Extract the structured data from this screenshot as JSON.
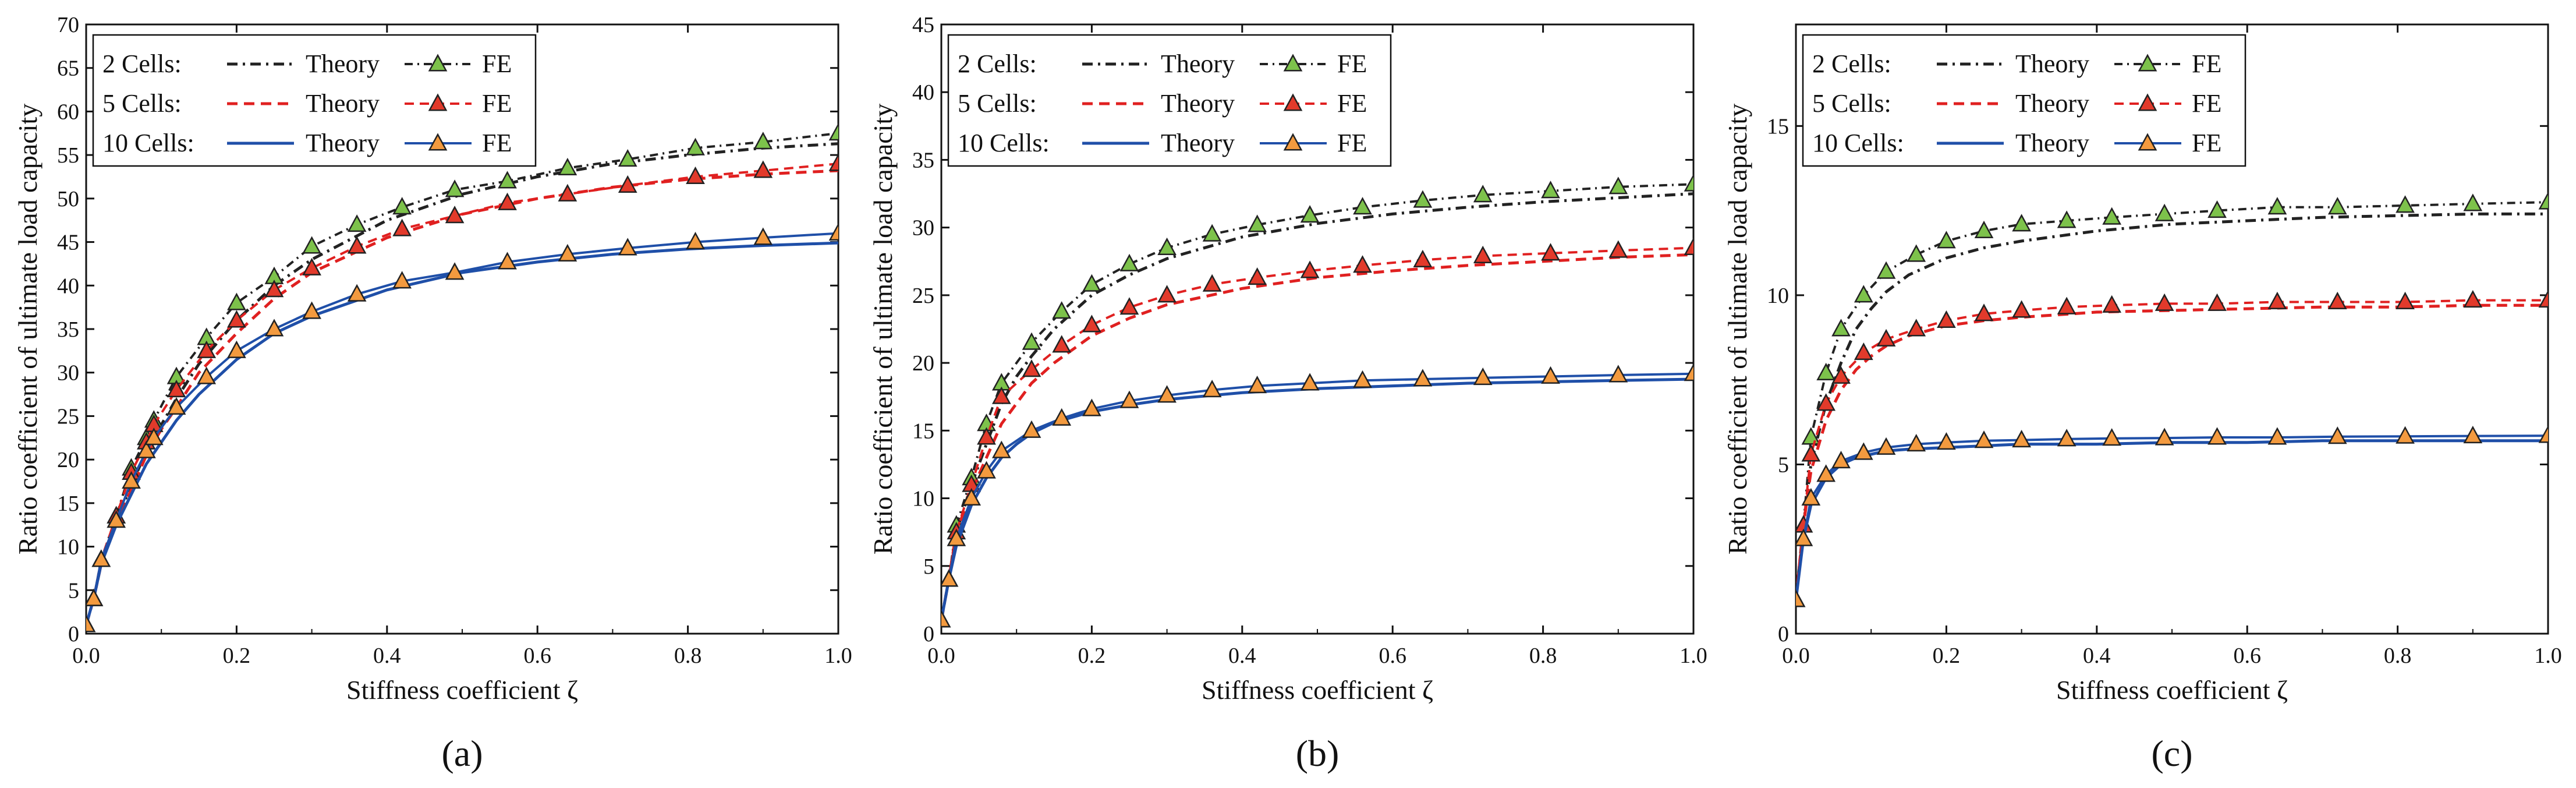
{
  "figure": {
    "shared_x_label": "Stiffness coefficient ζ",
    "shared_y_label": "Ratio coefficient of ultimate load capacity"
  },
  "legend": {
    "rows": [
      {
        "group": "2 Cells:",
        "theory": "Theory",
        "fe": "FE",
        "color": "#222222",
        "marker_fill": "#7dc24b",
        "dash": "14,8,3,8"
      },
      {
        "group": "5 Cells:",
        "theory": "Theory",
        "fe": "FE",
        "color": "#e02020",
        "marker_fill": "#e23a2b",
        "dash": "16,10"
      },
      {
        "group": "10 Cells:",
        "theory": "Theory",
        "fe": "FE",
        "color": "#1f4fa8",
        "marker_fill": "#f39a3f",
        "dash": ""
      }
    ]
  },
  "chart_data": [
    {
      "type": "line",
      "panel_label": "(a)",
      "xlabel": "Stiffness coefficient ζ",
      "ylabel": "Ratio coefficient of ultimate load capacity",
      "xlim": [
        0.0,
        1.0
      ],
      "ylim": [
        0,
        70
      ],
      "xticks": [
        "0.0",
        "0.2",
        "0.4",
        "0.6",
        "0.8",
        "1.0"
      ],
      "yticks": [
        "0",
        "5",
        "10",
        "15",
        "20",
        "25",
        "30",
        "35",
        "40",
        "45",
        "50",
        "55",
        "60",
        "65",
        "70"
      ],
      "series": [
        {
          "name": "2 Cells: Theory",
          "style": "dashdot",
          "x": [
            0,
            0.01,
            0.02,
            0.04,
            0.06,
            0.08,
            0.1,
            0.12,
            0.15,
            0.2,
            0.25,
            0.3,
            0.4,
            0.5,
            0.6,
            0.7,
            0.8,
            0.9,
            1.0
          ],
          "y": [
            1,
            4,
            8,
            13,
            17,
            21,
            24,
            27,
            31,
            36,
            40,
            43,
            47.5,
            50.5,
            52.5,
            54,
            55,
            55.8,
            56.3
          ]
        },
        {
          "name": "2 Cells: FE",
          "style": "markers",
          "x": [
            0,
            0.01,
            0.02,
            0.04,
            0.06,
            0.08,
            0.09,
            0.12,
            0.16,
            0.2,
            0.25,
            0.3,
            0.36,
            0.42,
            0.49,
            0.56,
            0.64,
            0.72,
            0.81,
            0.9,
            1.0
          ],
          "y": [
            1,
            4,
            8.5,
            13.5,
            19,
            22.5,
            24.5,
            29.5,
            34,
            38,
            41,
            44.5,
            47,
            49,
            51,
            52,
            53.5,
            54.5,
            55.8,
            56.5,
            57.5
          ]
        },
        {
          "name": "5 Cells: Theory",
          "style": "dashed",
          "x": [
            0,
            0.01,
            0.02,
            0.04,
            0.06,
            0.08,
            0.1,
            0.12,
            0.15,
            0.2,
            0.25,
            0.3,
            0.4,
            0.5,
            0.6,
            0.7,
            0.8,
            0.9,
            1.0
          ],
          "y": [
            1,
            4,
            8,
            13,
            16.5,
            20.5,
            23.5,
            26,
            30,
            34.5,
            38.5,
            41.5,
            45.5,
            48.2,
            50,
            51.3,
            52.2,
            52.8,
            53.2
          ]
        },
        {
          "name": "5 Cells: FE",
          "style": "markers",
          "x": [
            0,
            0.01,
            0.02,
            0.04,
            0.06,
            0.08,
            0.09,
            0.12,
            0.16,
            0.2,
            0.25,
            0.3,
            0.36,
            0.42,
            0.49,
            0.56,
            0.64,
            0.72,
            0.81,
            0.9,
            1.0
          ],
          "y": [
            1,
            4,
            8.5,
            13.5,
            18.5,
            22,
            24,
            28,
            32.5,
            36,
            39.5,
            42,
            44.5,
            46.5,
            48,
            49.5,
            50.5,
            51.5,
            52.5,
            53.2,
            54
          ]
        },
        {
          "name": "10 Cells: Theory",
          "style": "solid",
          "x": [
            0,
            0.01,
            0.02,
            0.04,
            0.06,
            0.08,
            0.1,
            0.12,
            0.15,
            0.2,
            0.25,
            0.3,
            0.4,
            0.5,
            0.6,
            0.7,
            0.8,
            0.9,
            1.0
          ],
          "y": [
            1,
            4,
            8,
            12.5,
            16,
            19.5,
            22,
            24.5,
            27.5,
            31.5,
            34.5,
            36.5,
            39.5,
            41.5,
            42.7,
            43.6,
            44.2,
            44.6,
            44.9
          ]
        },
        {
          "name": "10 Cells: FE",
          "style": "markers",
          "x": [
            0,
            0.01,
            0.02,
            0.04,
            0.06,
            0.08,
            0.09,
            0.12,
            0.16,
            0.2,
            0.25,
            0.3,
            0.36,
            0.42,
            0.49,
            0.56,
            0.64,
            0.72,
            0.81,
            0.9,
            1.0
          ],
          "y": [
            1,
            4,
            8.5,
            13,
            17.5,
            21,
            22.5,
            26,
            29.5,
            32.5,
            35,
            37,
            39,
            40.5,
            41.5,
            42.7,
            43.6,
            44.3,
            45,
            45.5,
            46
          ]
        }
      ]
    },
    {
      "type": "line",
      "panel_label": "(b)",
      "xlabel": "Stiffness coefficient ζ",
      "ylabel": "Ratio coefficient of ultimate load capacity",
      "xlim": [
        0.0,
        1.0
      ],
      "ylim": [
        0,
        45
      ],
      "xticks": [
        "0.0",
        "0.2",
        "0.4",
        "0.6",
        "0.8",
        "1.0"
      ],
      "yticks": [
        "0",
        "5",
        "10",
        "15",
        "20",
        "25",
        "30",
        "35",
        "40",
        "45"
      ],
      "series": [
        {
          "name": "2 Cells: Theory",
          "style": "dashdot",
          "x": [
            0,
            0.01,
            0.02,
            0.04,
            0.06,
            0.08,
            0.1,
            0.12,
            0.15,
            0.2,
            0.25,
            0.3,
            0.4,
            0.5,
            0.6,
            0.7,
            0.8,
            0.9,
            1.0
          ],
          "y": [
            1,
            4,
            7.5,
            11,
            14,
            17,
            19,
            20.5,
            22.5,
            25,
            26.5,
            27.7,
            29.3,
            30.3,
            31,
            31.5,
            31.9,
            32.2,
            32.5
          ]
        },
        {
          "name": "2 Cells: FE",
          "style": "markers",
          "x": [
            0,
            0.01,
            0.02,
            0.04,
            0.06,
            0.08,
            0.12,
            0.16,
            0.2,
            0.25,
            0.3,
            0.36,
            0.42,
            0.49,
            0.56,
            0.64,
            0.72,
            0.81,
            0.9,
            1.0
          ],
          "y": [
            1,
            4,
            8,
            11.5,
            15.5,
            18.5,
            21.5,
            23.8,
            25.8,
            27.3,
            28.5,
            29.5,
            30.2,
            30.9,
            31.5,
            32,
            32.4,
            32.7,
            33,
            33.2
          ]
        },
        {
          "name": "5 Cells: Theory",
          "style": "dashed",
          "x": [
            0,
            0.01,
            0.02,
            0.04,
            0.06,
            0.08,
            0.1,
            0.12,
            0.15,
            0.2,
            0.25,
            0.3,
            0.4,
            0.5,
            0.6,
            0.7,
            0.8,
            0.9,
            1.0
          ],
          "y": [
            1,
            4,
            7.5,
            10.5,
            13,
            15.5,
            17,
            18.5,
            20,
            22,
            23.3,
            24.3,
            25.5,
            26.3,
            26.8,
            27.2,
            27.5,
            27.8,
            28
          ]
        },
        {
          "name": "5 Cells: FE",
          "style": "markers",
          "x": [
            0,
            0.01,
            0.02,
            0.04,
            0.06,
            0.08,
            0.12,
            0.16,
            0.2,
            0.25,
            0.3,
            0.36,
            0.42,
            0.49,
            0.56,
            0.64,
            0.72,
            0.81,
            0.9,
            1.0
          ],
          "y": [
            1,
            4,
            7.5,
            11,
            14.5,
            17.5,
            19.5,
            21.3,
            22.8,
            24.1,
            25,
            25.8,
            26.3,
            26.8,
            27.2,
            27.6,
            27.9,
            28.1,
            28.3,
            28.5
          ]
        },
        {
          "name": "10 Cells: Theory",
          "style": "solid",
          "x": [
            0,
            0.01,
            0.02,
            0.04,
            0.06,
            0.08,
            0.1,
            0.12,
            0.15,
            0.2,
            0.25,
            0.3,
            0.4,
            0.5,
            0.6,
            0.7,
            0.8,
            0.9,
            1.0
          ],
          "y": [
            1,
            4,
            6.5,
            9.5,
            11.5,
            13,
            14,
            14.8,
            15.6,
            16.4,
            16.9,
            17.3,
            17.8,
            18.1,
            18.3,
            18.5,
            18.6,
            18.7,
            18.8
          ]
        },
        {
          "name": "10 Cells: FE",
          "style": "markers",
          "x": [
            0,
            0.01,
            0.02,
            0.04,
            0.06,
            0.08,
            0.12,
            0.16,
            0.2,
            0.25,
            0.3,
            0.36,
            0.42,
            0.49,
            0.56,
            0.64,
            0.72,
            0.81,
            0.9,
            1.0
          ],
          "y": [
            1,
            4,
            7,
            10,
            12,
            13.5,
            15,
            15.9,
            16.6,
            17.2,
            17.6,
            18,
            18.3,
            18.5,
            18.7,
            18.8,
            18.9,
            19,
            19.1,
            19.2
          ]
        }
      ]
    },
    {
      "type": "line",
      "panel_label": "(c)",
      "xlabel": "Stiffness coefficient ζ",
      "ylabel": "Ratio coefficient of ultimate load capacity",
      "xlim": [
        0.0,
        1.0
      ],
      "ylim": [
        0,
        18
      ],
      "xticks": [
        "0.0",
        "0.2",
        "0.4",
        "0.6",
        "0.8",
        "1.0"
      ],
      "yticks": [
        "0",
        "5",
        "10",
        "15"
      ],
      "series": [
        {
          "name": "2 Cells: Theory",
          "style": "dashdot",
          "x": [
            0,
            0.01,
            0.02,
            0.04,
            0.06,
            0.08,
            0.1,
            0.12,
            0.15,
            0.2,
            0.25,
            0.3,
            0.4,
            0.5,
            0.6,
            0.7,
            0.8,
            0.9,
            1.0
          ],
          "y": [
            1,
            3.2,
            5,
            6.8,
            8,
            9,
            9.6,
            10.1,
            10.6,
            11.1,
            11.4,
            11.6,
            11.9,
            12.1,
            12.2,
            12.3,
            12.35,
            12.4,
            12.4
          ]
        },
        {
          "name": "2 Cells: FE",
          "style": "markers",
          "x": [
            0,
            0.01,
            0.02,
            0.04,
            0.06,
            0.09,
            0.12,
            0.16,
            0.2,
            0.25,
            0.3,
            0.36,
            0.42,
            0.49,
            0.56,
            0.64,
            0.72,
            0.81,
            0.9,
            1.0
          ],
          "y": [
            1,
            3.2,
            5.8,
            7.7,
            9,
            10,
            10.7,
            11.2,
            11.6,
            11.9,
            12.1,
            12.2,
            12.3,
            12.4,
            12.5,
            12.6,
            12.6,
            12.65,
            12.7,
            12.75
          ]
        },
        {
          "name": "5 Cells: Theory",
          "style": "dashed",
          "x": [
            0,
            0.01,
            0.02,
            0.04,
            0.06,
            0.08,
            0.1,
            0.12,
            0.15,
            0.2,
            0.25,
            0.3,
            0.4,
            0.5,
            0.6,
            0.7,
            0.8,
            0.9,
            1.0
          ],
          "y": [
            1,
            3.2,
            4.8,
            6.3,
            7.2,
            7.8,
            8.2,
            8.5,
            8.8,
            9.1,
            9.25,
            9.35,
            9.5,
            9.55,
            9.6,
            9.65,
            9.65,
            9.7,
            9.7
          ]
        },
        {
          "name": "5 Cells: FE",
          "style": "markers",
          "x": [
            0,
            0.01,
            0.02,
            0.04,
            0.06,
            0.09,
            0.12,
            0.16,
            0.2,
            0.25,
            0.3,
            0.36,
            0.42,
            0.49,
            0.56,
            0.64,
            0.72,
            0.81,
            0.9,
            1.0
          ],
          "y": [
            1,
            3.2,
            5.3,
            6.8,
            7.6,
            8.3,
            8.7,
            9,
            9.25,
            9.45,
            9.55,
            9.65,
            9.7,
            9.75,
            9.75,
            9.8,
            9.8,
            9.8,
            9.85,
            9.85
          ]
        },
        {
          "name": "10 Cells: Theory",
          "style": "solid",
          "x": [
            0,
            0.01,
            0.02,
            0.04,
            0.06,
            0.08,
            0.1,
            0.12,
            0.15,
            0.2,
            0.25,
            0.3,
            0.4,
            0.5,
            0.6,
            0.7,
            0.8,
            0.9,
            1.0
          ],
          "y": [
            1,
            2.8,
            3.8,
            4.6,
            5,
            5.2,
            5.3,
            5.4,
            5.45,
            5.5,
            5.55,
            5.6,
            5.6,
            5.65,
            5.65,
            5.7,
            5.7,
            5.7,
            5.7
          ]
        },
        {
          "name": "10 Cells: FE",
          "style": "markers",
          "x": [
            0,
            0.01,
            0.02,
            0.04,
            0.06,
            0.09,
            0.12,
            0.16,
            0.2,
            0.25,
            0.3,
            0.36,
            0.42,
            0.49,
            0.56,
            0.64,
            0.72,
            0.81,
            0.9,
            1.0
          ],
          "y": [
            1,
            2.8,
            4,
            4.7,
            5.1,
            5.35,
            5.5,
            5.6,
            5.65,
            5.7,
            5.72,
            5.75,
            5.77,
            5.78,
            5.8,
            5.8,
            5.82,
            5.83,
            5.84,
            5.85
          ]
        }
      ]
    }
  ]
}
